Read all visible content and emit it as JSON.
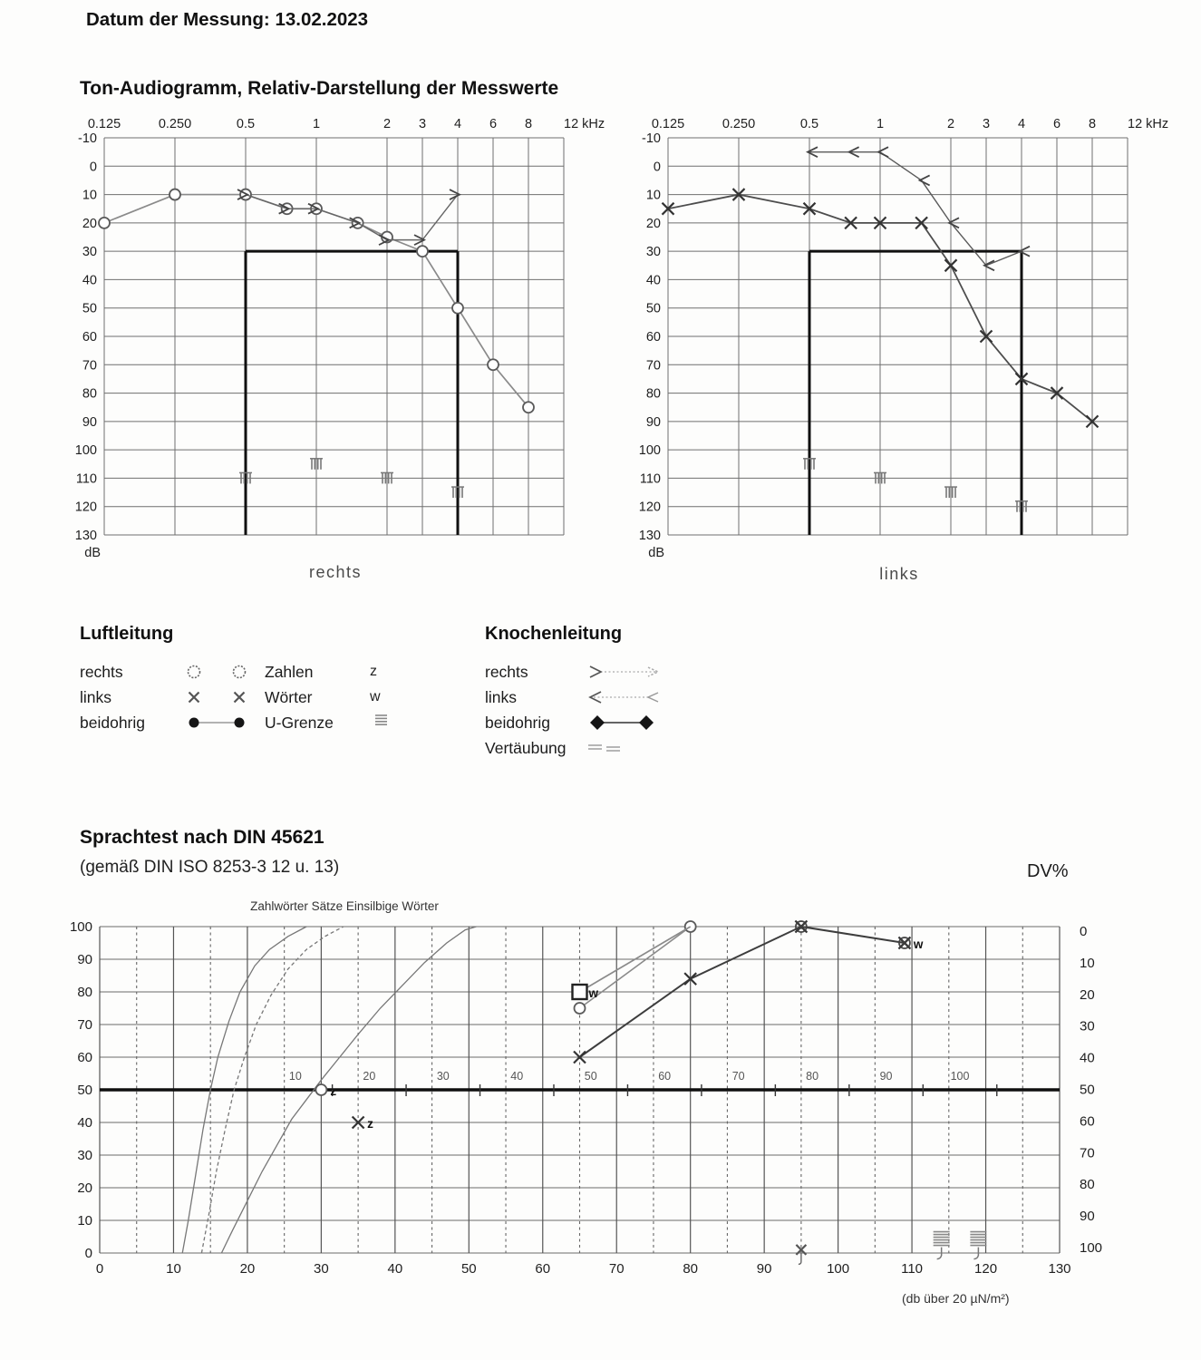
{
  "header": {
    "date_label": "Datum der Messung: 13.02.2023"
  },
  "tone_section": {
    "title": "Ton-Audiogramm, Relativ-Darstellung der Messwerte",
    "captions": [
      "rechts",
      "links"
    ],
    "db_unit": "dB"
  },
  "legend": {
    "air_title": "Luftleitung",
    "bone_title": "Knochenleitung",
    "air_rows": [
      {
        "label": "rechts",
        "symbol": "circle-pair"
      },
      {
        "label": "links",
        "symbol": "x-pair"
      },
      {
        "label": "beidohrig",
        "symbol": "dot-line"
      }
    ],
    "speech_rows": [
      {
        "label": "Zahlen",
        "letter": "z"
      },
      {
        "label": "Wörter",
        "letter": "w"
      },
      {
        "label": "U-Grenze",
        "glyph": "u-grenze-small"
      }
    ],
    "bone_rows": [
      {
        "label": "rechts",
        "symbol": "arrow-right"
      },
      {
        "label": "links",
        "symbol": "arrow-left"
      },
      {
        "label": "beidohrig",
        "symbol": "diamond-line"
      },
      {
        "label": "Vertäubung",
        "symbol": "hatch"
      }
    ]
  },
  "speech_section": {
    "title": "Sprachtest nach DIN 45621",
    "subtitle": "(gemäß DIN ISO 8253-3 12 u. 13)",
    "dv_label": "DV%",
    "curves_caption": "Zahlwörter Sätze Einsilbige Wörter",
    "bottom_note": "(db über 20 µN/m²)"
  },
  "chart_data": [
    {
      "type": "line",
      "id": "audiogram-rechts",
      "title": "rechts",
      "x_unit": "kHz",
      "y_unit": "dB",
      "x_ticks": [
        "0.125",
        "0.250",
        "0.5",
        "1",
        "2",
        "3",
        "4",
        "6",
        "8",
        "12 kHz"
      ],
      "x_tick_freqs": [
        0.125,
        0.25,
        0.5,
        1,
        2,
        3,
        4,
        6,
        8,
        12
      ],
      "y_ticks": [
        -10,
        0,
        10,
        20,
        30,
        40,
        50,
        60,
        70,
        80,
        90,
        100,
        110,
        120,
        130
      ],
      "ylim": [
        -10,
        130
      ],
      "bold_box": {
        "db": 30,
        "from_khz": 0.5,
        "to_khz": 4
      },
      "series": [
        {
          "name": "Luftleitung rechts",
          "marker": "circle",
          "color": "#8a8a8a",
          "width": 1.7,
          "points": [
            [
              0.125,
              20
            ],
            [
              0.25,
              10
            ],
            [
              0.5,
              10
            ],
            [
              0.75,
              15
            ],
            [
              1,
              15
            ],
            [
              1.5,
              20
            ],
            [
              2,
              25
            ],
            [
              3,
              30
            ],
            [
              4,
              50
            ],
            [
              6,
              70
            ],
            [
              8,
              85
            ]
          ]
        },
        {
          "name": "Knochenleitung rechts",
          "marker": "arrow-right",
          "color": "#666666",
          "width": 1.4,
          "points": [
            [
              0.5,
              10
            ],
            [
              0.75,
              15
            ],
            [
              1,
              15
            ],
            [
              1.5,
              20
            ],
            [
              2,
              26
            ],
            [
              3,
              26
            ],
            [
              4,
              10
            ]
          ]
        },
        {
          "name": "Vertäubung rechts",
          "marker": "masking",
          "no_line": true,
          "color": "#777777",
          "points": [
            [
              0.5,
              110
            ],
            [
              1,
              105
            ],
            [
              2,
              110
            ],
            [
              4,
              115
            ]
          ]
        }
      ]
    },
    {
      "type": "line",
      "id": "audiogram-links",
      "title": "links",
      "x_unit": "kHz",
      "y_unit": "dB",
      "x_ticks": [
        "0.125",
        "0.250",
        "0.5",
        "1",
        "2",
        "3",
        "4",
        "6",
        "8",
        "12 kHz"
      ],
      "x_tick_freqs": [
        0.125,
        0.25,
        0.5,
        1,
        2,
        3,
        4,
        6,
        8,
        12
      ],
      "y_ticks": [
        -10,
        0,
        10,
        20,
        30,
        40,
        50,
        60,
        70,
        80,
        90,
        100,
        110,
        120,
        130
      ],
      "ylim": [
        -10,
        130
      ],
      "bold_box": {
        "db": 30,
        "from_khz": 0.5,
        "to_khz": 4
      },
      "series": [
        {
          "name": "Luftleitung links",
          "marker": "x",
          "color": "#4d4d4d",
          "width": 1.8,
          "points": [
            [
              0.125,
              15
            ],
            [
              0.25,
              10
            ],
            [
              0.5,
              15
            ],
            [
              0.75,
              20
            ],
            [
              1,
              20
            ],
            [
              1.5,
              20
            ],
            [
              2,
              35
            ],
            [
              3,
              60
            ],
            [
              4,
              75
            ],
            [
              6,
              80
            ],
            [
              8,
              90
            ]
          ]
        },
        {
          "name": "Knochenleitung links",
          "marker": "arrow-left",
          "color": "#5a5a5a",
          "width": 1.4,
          "points": [
            [
              0.5,
              -5
            ],
            [
              0.75,
              -5
            ],
            [
              1,
              -5
            ],
            [
              1.5,
              5
            ],
            [
              2,
              20
            ],
            [
              3,
              35
            ],
            [
              4,
              30
            ]
          ]
        },
        {
          "name": "Vertäubung links",
          "marker": "masking",
          "no_line": true,
          "color": "#777777",
          "points": [
            [
              0.5,
              105
            ],
            [
              1,
              110
            ],
            [
              2,
              115
            ],
            [
              4,
              120
            ]
          ]
        }
      ]
    },
    {
      "type": "line",
      "id": "speech-test",
      "title": "Sprachtest nach DIN 45621",
      "xlabel_note": "(db über 20 µN/m²)",
      "x_ticks": [
        0,
        10,
        20,
        30,
        40,
        50,
        60,
        70,
        80,
        90,
        100,
        110,
        120,
        130
      ],
      "xlim": [
        0,
        130
      ],
      "ylim": [
        0,
        100
      ],
      "y_ticks": [
        0,
        10,
        20,
        30,
        40,
        50,
        60,
        70,
        80,
        90,
        100
      ],
      "dv_ticks": [
        0,
        10,
        20,
        30,
        40,
        50,
        60,
        70,
        80,
        90,
        100
      ],
      "inner_scale": {
        "values": [
          10,
          20,
          30,
          40,
          50,
          60,
          70,
          80,
          90,
          100
        ],
        "offset": 16.5
      },
      "bold_line_y": 50,
      "normal_curves": [
        {
          "name": "Zahlwörter",
          "style": "solid",
          "points": [
            [
              11.2,
              0
            ],
            [
              12,
              10
            ],
            [
              13,
              24
            ],
            [
              14,
              38
            ],
            [
              15,
              50
            ],
            [
              16,
              60
            ],
            [
              17.5,
              71
            ],
            [
              19,
              80
            ],
            [
              21,
              88
            ],
            [
              23,
              93
            ],
            [
              25.5,
              97
            ],
            [
              28,
              100
            ]
          ]
        },
        {
          "name": "Sätze",
          "style": "dashed",
          "points": [
            [
              13.8,
              0
            ],
            [
              14.8,
              12
            ],
            [
              15.8,
              25
            ],
            [
              17,
              38
            ],
            [
              18.2,
              50
            ],
            [
              19.6,
              60
            ],
            [
              21.2,
              70
            ],
            [
              23.2,
              79
            ],
            [
              25.5,
              87
            ],
            [
              28,
              93
            ],
            [
              30.5,
              97
            ],
            [
              33,
              100
            ]
          ]
        },
        {
          "name": "Einsilbige Wörter",
          "style": "solid",
          "points": [
            [
              16.5,
              0
            ],
            [
              18,
              7
            ],
            [
              20,
              16
            ],
            [
              22,
              25
            ],
            [
              24,
              33
            ],
            [
              26,
              41
            ],
            [
              28,
              47
            ],
            [
              30,
              53
            ],
            [
              32.5,
              60
            ],
            [
              35,
              67
            ],
            [
              38,
              75
            ],
            [
              41,
              82
            ],
            [
              44,
              89
            ],
            [
              47,
              95
            ],
            [
              49.5,
              99
            ],
            [
              51,
              100
            ]
          ]
        }
      ],
      "series": [
        {
          "name": "Wörter links",
          "marker": "x",
          "color": "#3d3d3d",
          "width": 2,
          "points": [
            [
              65,
              60
            ],
            [
              80,
              84
            ],
            [
              95,
              100
            ],
            [
              109,
              95
            ]
          ]
        },
        {
          "name": "Zahlen/Wörter rechts Linie",
          "marker": "circle",
          "color": "#8a8a8a",
          "width": 1.6,
          "points": [
            [
              65,
              75
            ],
            [
              80,
              100
            ]
          ]
        },
        {
          "name": "Wörter rechts",
          "marker": "square",
          "letter": "w",
          "letter_at": 0,
          "markers_at": [
            0
          ],
          "color": "#8a8a8a",
          "width": 1.6,
          "points": [
            [
              65,
              80
            ],
            [
              80,
              100
            ]
          ]
        },
        {
          "name": "Wörter links Endpunkt",
          "marker": "circle-x",
          "letter": "w",
          "letter_at": 0,
          "no_line": true,
          "points": [
            [
              109,
              95
            ]
          ]
        },
        {
          "name": "Markierung 95 dB",
          "marker": "circle-x",
          "no_line": true,
          "points": [
            [
              95,
              100
            ]
          ]
        },
        {
          "name": "Zahlen rechts",
          "marker": "circle",
          "letter": "z",
          "letter_at": 0,
          "no_line": true,
          "points": [
            [
              30,
              50
            ]
          ]
        },
        {
          "name": "Zahlen links",
          "marker": "x",
          "letter": "z",
          "letter_at": 0,
          "no_line": true,
          "points": [
            [
              35,
              40
            ]
          ]
        },
        {
          "name": "Vertäubung Sprachtest",
          "marker": "x-tail",
          "no_line": true,
          "points": [
            [
              95,
              1
            ]
          ]
        },
        {
          "name": "U-Grenze",
          "marker": "u-grenze",
          "no_line": true,
          "points": [
            [
              114,
              4
            ],
            [
              119,
              4
            ]
          ]
        }
      ]
    }
  ]
}
